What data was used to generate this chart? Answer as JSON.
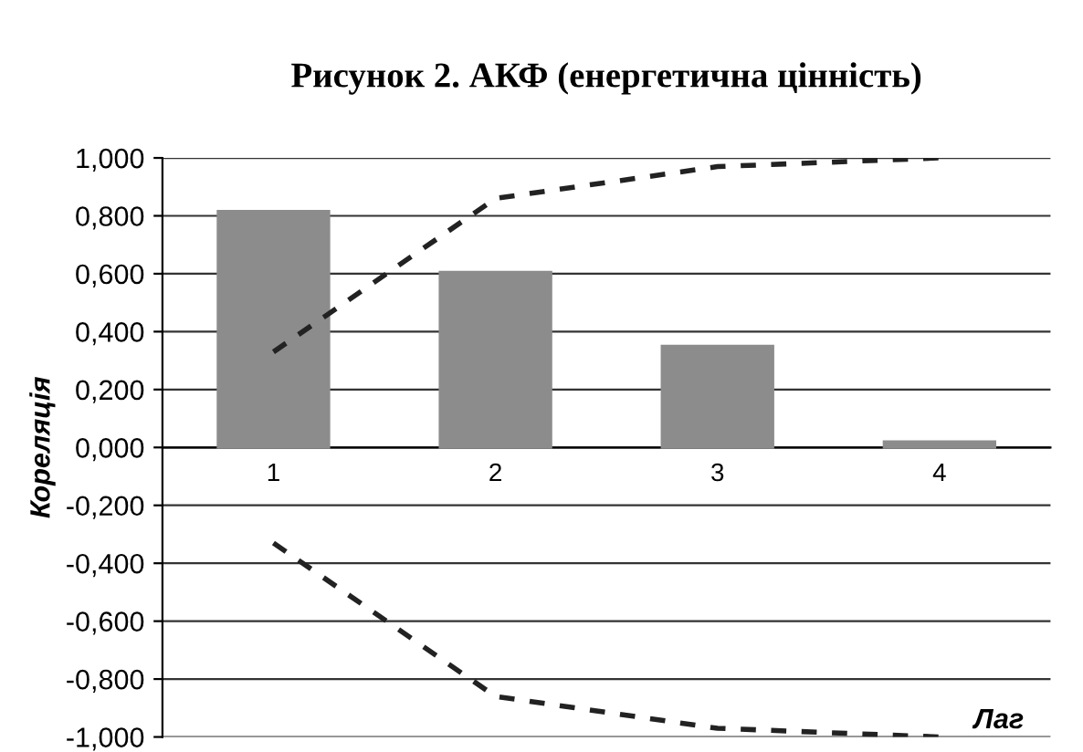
{
  "chart_data": {
    "type": "bar",
    "title": "Рисунок 2. АКФ (енергетична цінність)",
    "xlabel": "Лаг",
    "ylabel": "Кореляція",
    "categories": [
      "1",
      "2",
      "3",
      "4"
    ],
    "series": [
      {
        "color": "#8c8c8c",
        "values": [
          0.816,
          0.606,
          0.35,
          0.02
        ]
      },
      {
        "type": "line",
        "color": "#222222",
        "line_style": "dashed",
        "values": [
          0.33,
          0.86,
          0.97,
          1.0
        ]
      },
      {
        "type": "line",
        "color": "#222222",
        "line_style": "dashed",
        "values": [
          -0.33,
          -0.86,
          -0.97,
          -1.0
        ]
      }
    ],
    "ylim": [
      -1,
      1
    ],
    "yticks": [
      {
        "value": -1,
        "label": "-1,000"
      },
      {
        "value": -0.8,
        "label": "-0,800"
      },
      {
        "value": -0.6,
        "label": "-0,600"
      },
      {
        "value": -0.4,
        "label": "-0,400"
      },
      {
        "value": -0.2,
        "label": "-0,200"
      },
      {
        "value": 0,
        "label": "0,000"
      },
      {
        "value": 0.2,
        "label": "0,200"
      },
      {
        "value": 0.4,
        "label": "0,400"
      },
      {
        "value": 0.6,
        "label": "0,600"
      },
      {
        "value": 0.8,
        "label": "0,800"
      },
      {
        "value": 1,
        "label": "1,000"
      }
    ],
    "grid": "y",
    "legend": false
  }
}
